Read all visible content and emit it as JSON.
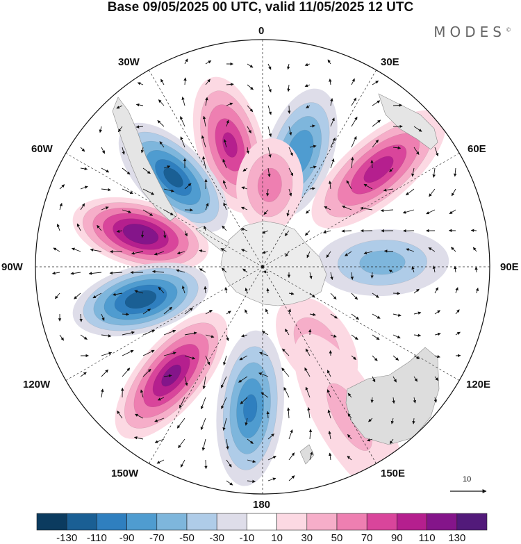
{
  "title": "Base 09/05/2025 00 UTC, valid 11/05/2025 12 UTC",
  "brand": "MODES",
  "brand_mark": "©",
  "longitude_labels": {
    "lon_0": "0",
    "lon_30e": "30E",
    "lon_60e": "60E",
    "lon_90e": "90E",
    "lon_120e": "120E",
    "lon_150e": "150E",
    "lon_180": "180",
    "lon_150w": "150W",
    "lon_120w": "120W",
    "lon_90w": "90W",
    "lon_60w": "60W",
    "lon_30w": "30W"
  },
  "reference_vector": "10",
  "colorbar": {
    "colors": [
      "#0b3b5f",
      "#1a5f94",
      "#2f7fbf",
      "#4f9cd0",
      "#7eb6dc",
      "#afcce8",
      "#dedde9",
      "#ffffff",
      "#fcd9e3",
      "#f6aec9",
      "#ee7fb1",
      "#d9459b",
      "#b51f8e",
      "#84158a",
      "#521a7a"
    ],
    "tick_labels": [
      "-130",
      "-110",
      "-90",
      "-70",
      "-50",
      "-30",
      "-10",
      "10",
      "30",
      "50",
      "70",
      "90",
      "110",
      "130"
    ]
  },
  "anomaly_centers": [
    {
      "lon": -15,
      "lat": -50,
      "value": 80
    },
    {
      "lon": 18,
      "lat": -52,
      "value": -75
    },
    {
      "lon": 50,
      "lat": -42,
      "value": 85
    },
    {
      "lon": 88,
      "lat": -52,
      "value": -45
    },
    {
      "lon": 5,
      "lat": -64,
      "value": 45
    },
    {
      "lon": -45,
      "lat": -50,
      "value": -100
    },
    {
      "lon": -75,
      "lat": -50,
      "value": 115
    },
    {
      "lon": -105,
      "lat": -50,
      "value": -110
    },
    {
      "lon": -140,
      "lat": -45,
      "value": 100
    },
    {
      "lon": -175,
      "lat": -45,
      "value": -80
    },
    {
      "lon": 145,
      "lat": -60,
      "value": 30
    },
    {
      "lon": 150,
      "lat": -35,
      "value": 20
    }
  ]
}
